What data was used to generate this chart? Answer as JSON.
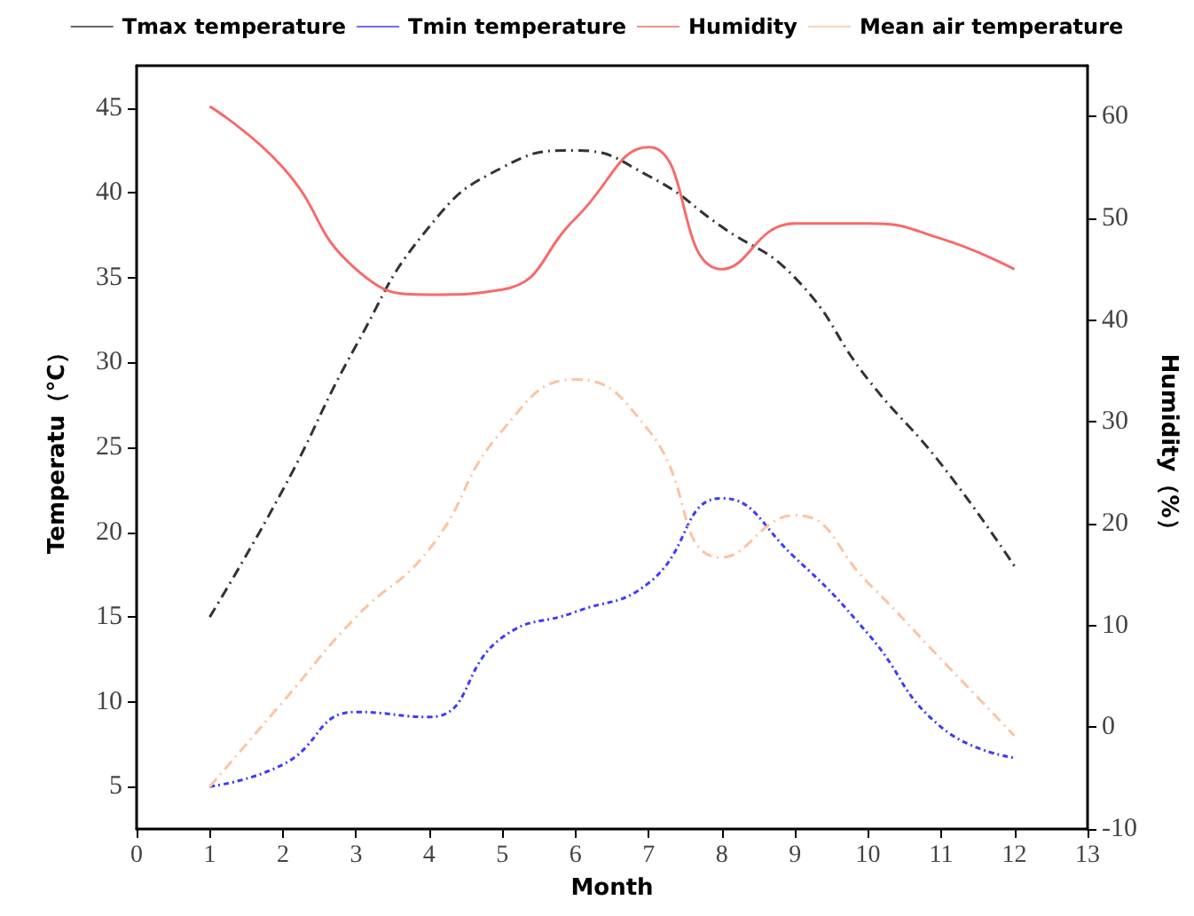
{
  "chart_data": {
    "type": "line",
    "xlabel": "Month",
    "ylabel": "Temperatu（℃）",
    "y2label": "Humidity（%）",
    "x": [
      1,
      2,
      3,
      4,
      5,
      6,
      7,
      8,
      9,
      10,
      11,
      12
    ],
    "series": [
      {
        "name": "Tmax temperature",
        "color": "#333333",
        "line_style": "dashed",
        "values": [
          15,
          22.5,
          31,
          38,
          41.5,
          42.5,
          41,
          38,
          35,
          29,
          24,
          18
        ]
      },
      {
        "name": "Tmin temperature",
        "color": "#3b3bff",
        "line_style": "dotted",
        "values": [
          5,
          6.3,
          9.4,
          9.1,
          13.8,
          15.3,
          17,
          22,
          18.5,
          14,
          8.5,
          6.7
        ]
      },
      {
        "name": "Humidity",
        "color": "#f76a6a",
        "line_style": "solid",
        "axis": "y2",
        "values": [
          61,
          55,
          45,
          42.5,
          43,
          50,
          57,
          45,
          49.5,
          49.5,
          48,
          45
        ]
      },
      {
        "name": "Mean air temperature",
        "color": "#fdc3a0",
        "line_style": "dashed",
        "values": [
          5,
          10,
          15,
          19,
          26,
          29,
          26,
          18.5,
          21,
          17,
          12.5,
          8
        ]
      }
    ],
    "xlim": [
      0,
      13
    ],
    "xticks": [
      0,
      1,
      2,
      3,
      4,
      5,
      6,
      7,
      8,
      9,
      10,
      11,
      12,
      13
    ],
    "ylim": [
      2.5,
      47.5
    ],
    "yticks": [
      5,
      10,
      15,
      20,
      25,
      30,
      35,
      40,
      45
    ],
    "y2lim": [
      -10,
      65
    ],
    "y2ticks": [
      -10,
      0,
      10,
      20,
      30,
      40,
      50,
      60
    ],
    "legend": "top",
    "marker": "none",
    "grid": false
  }
}
